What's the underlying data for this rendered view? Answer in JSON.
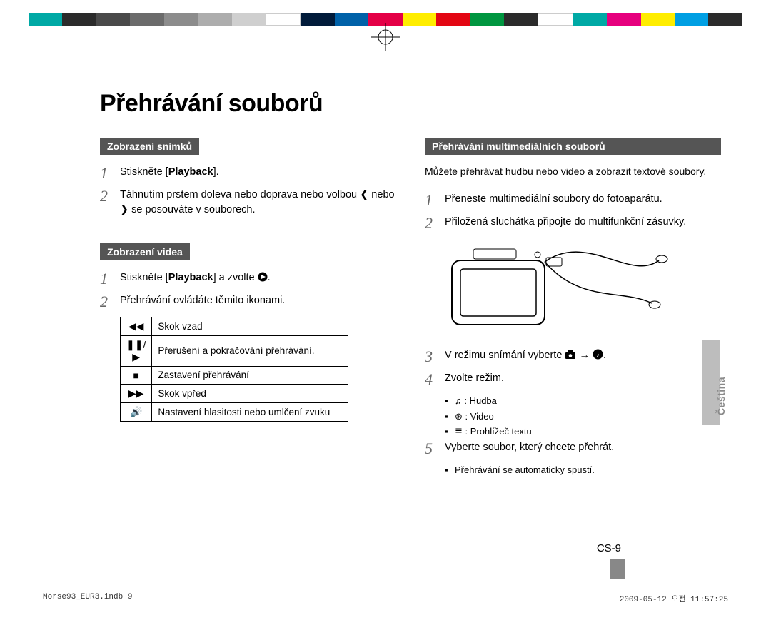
{
  "colorbar": [
    "#00a9a5",
    "#2b2b2b",
    "#4a4a4a",
    "#6b6b6b",
    "#8c8c8c",
    "#adadad",
    "#cfcfcf",
    "#ffffff",
    "#011b3a",
    "#0061a8",
    "#e40046",
    "#ffed00",
    "#e30613",
    "#009640",
    "#2b2b2b",
    "#ffffff",
    "#00a9a5",
    "#e6007e",
    "#ffed00",
    "#009fe3",
    "#2b2b2b"
  ],
  "title": "Přehrávání souborů",
  "left": {
    "hdr1": "Zobrazení snímků",
    "s1": {
      "pre": "Stiskněte [",
      "bold": "Playback",
      "post": "]."
    },
    "s2": "Táhnutím prstem doleva nebo doprava nebo volbou ❮ nebo ❯ se posouváte v souborech.",
    "hdr2": "Zobrazení videa",
    "s3": {
      "pre": "Stiskněte [",
      "bold": "Playback",
      "post": "] a zvolte "
    },
    "s4": "Přehrávání ovládáte těmito ikonami.",
    "icons": [
      {
        "glyph": "◀◀",
        "label": "Skok vzad"
      },
      {
        "glyph": "❚❚/▶",
        "label": "Přerušení a pokračování přehrávání."
      },
      {
        "glyph": "■",
        "label": "Zastavení přehrávání"
      },
      {
        "glyph": "▶▶",
        "label": "Skok vpřed"
      },
      {
        "glyph": "🔊",
        "label": "Nastavení hlasitosti nebo umlčení zvuku"
      }
    ]
  },
  "right": {
    "hdr": "Přehrávání multimediálních souborů",
    "intro": "Můžete přehrávat hudbu nebo video a zobrazit textové soubory.",
    "s1": "Přeneste multimediální soubory do fotoaparátu.",
    "s2": "Přiložená sluchátka připojte do multifunkční zásuvky.",
    "s3": {
      "pre": "V režimu snímání vyberte ",
      "arrow": "→"
    },
    "s4": "Zvolte režim.",
    "modes": [
      {
        "glyph": "♫",
        "label": ": Hudba"
      },
      {
        "glyph": "⊛",
        "label": ": Video"
      },
      {
        "glyph": "≣",
        "label": ": Prohlížeč textu"
      }
    ],
    "s5": "Vyberte soubor, který chcete přehrát.",
    "s5sub": "Přehrávání se automaticky spustí."
  },
  "sideLabel": "Čeština",
  "pageNum": "CS-9",
  "footer": {
    "left": "Morse93_EUR3.indb   9",
    "right": "2009-05-12   오전 11:57:25"
  }
}
